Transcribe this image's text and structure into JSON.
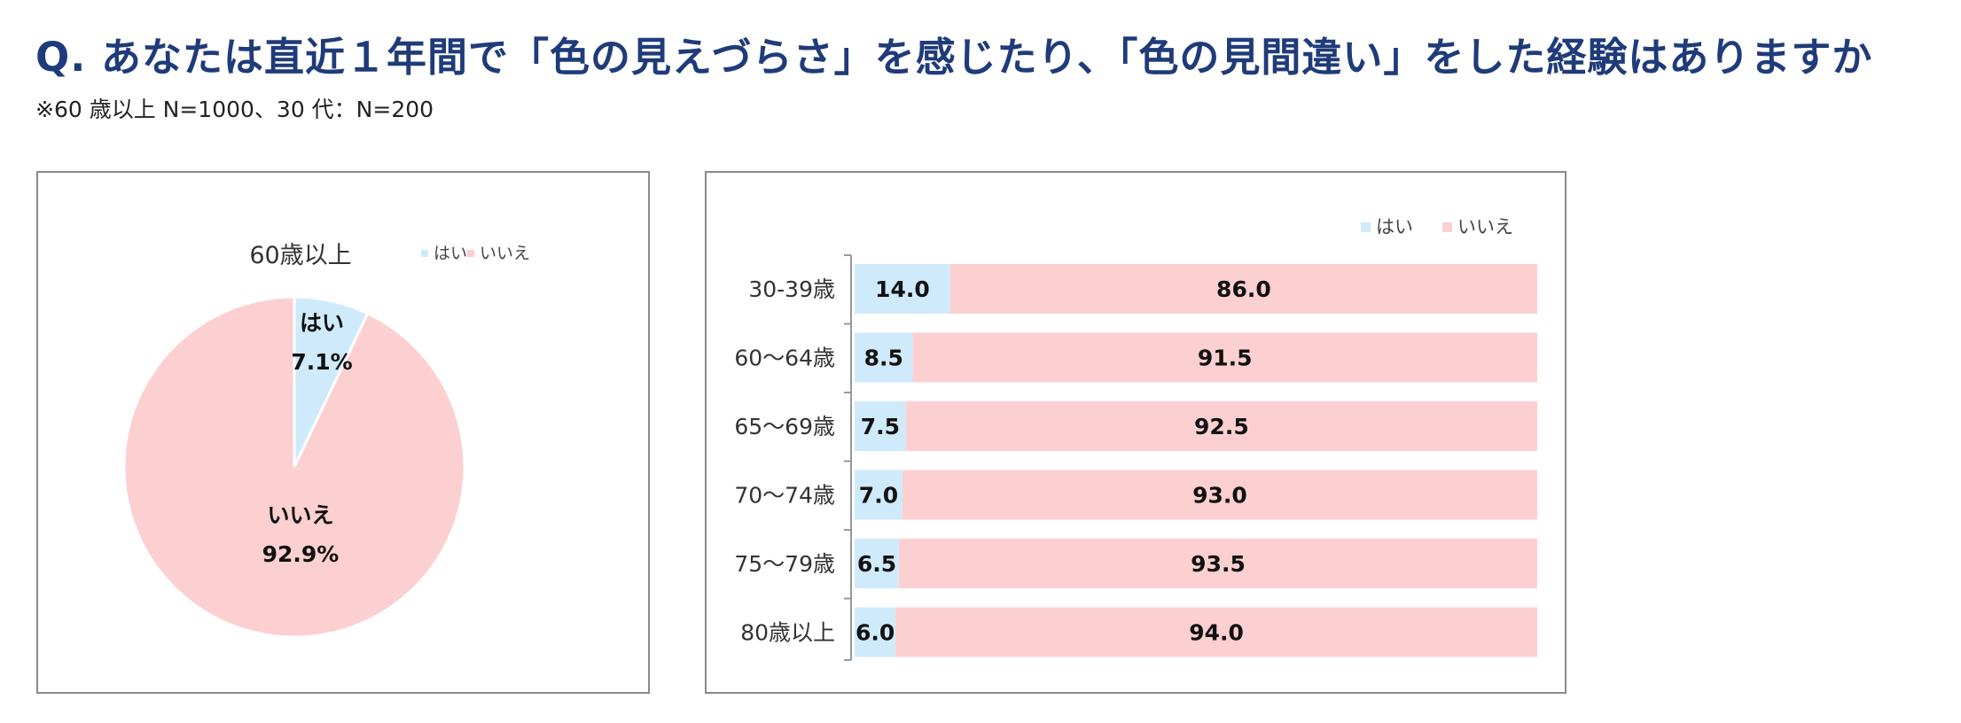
{
  "header": {
    "title": "Q. あなたは直近１年間で「色の見えづらさ」を感じたり、「色の見間違い」をした経験はありますか",
    "note": "※60 歳以上 N=1000、30 代：N=200"
  },
  "colors": {
    "yes": "#cfeafb",
    "no": "#fccfd0",
    "title": "#1f3b7a"
  },
  "chart_data": [
    {
      "type": "pie",
      "title": "60歳以上",
      "legend": [
        "はい",
        "いいえ"
      ],
      "legend_position": "top-right",
      "slices": [
        {
          "label": "はい",
          "value": 7.1,
          "display": "7.1%"
        },
        {
          "label": "いいえ",
          "value": 92.9,
          "display": "92.9%"
        }
      ]
    },
    {
      "type": "bar",
      "orientation": "horizontal",
      "stacked": true,
      "legend": [
        "はい",
        "いいえ"
      ],
      "legend_position": "top-right",
      "categories": [
        "30-39歳",
        "60～64歳",
        "65～69歳",
        "70～74歳",
        "75～79歳",
        "80歳以上"
      ],
      "series": [
        {
          "name": "はい",
          "values": [
            14.0,
            8.5,
            7.5,
            7.0,
            6.5,
            6.0
          ]
        },
        {
          "name": "いいえ",
          "values": [
            86.0,
            91.5,
            92.5,
            93.0,
            93.5,
            94.0
          ]
        }
      ],
      "xlim": [
        0,
        100
      ]
    }
  ]
}
